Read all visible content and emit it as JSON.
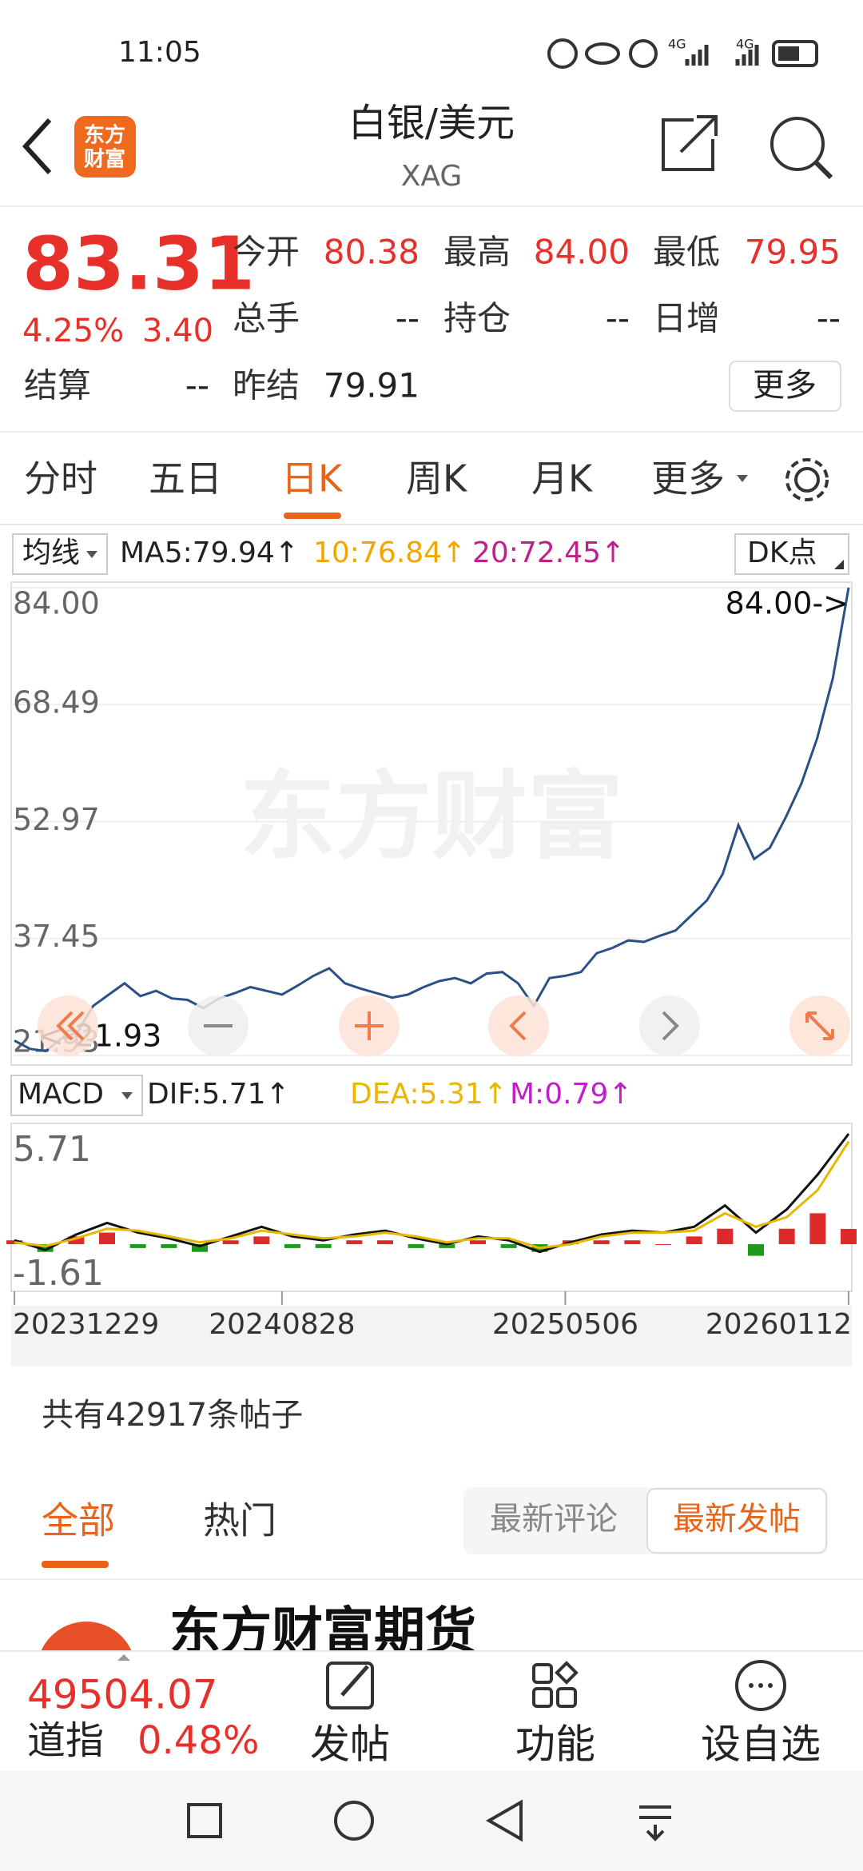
{
  "status_bar": {
    "time": "11:05",
    "network": [
      "4G",
      "4G"
    ]
  },
  "header": {
    "title": "白银/美元",
    "subtitle": "XAG",
    "logo": [
      "东方",
      "财富"
    ]
  },
  "quote": {
    "price": "83.31",
    "change_pct": "4.25%",
    "change": "3.40",
    "fields": [
      {
        "label": "今开",
        "value": "80.38"
      },
      {
        "label": "最高",
        "value": "84.00"
      },
      {
        "label": "最低",
        "value": "79.95"
      },
      {
        "label": "总手",
        "value": "--"
      },
      {
        "label": "持仓",
        "value": "--"
      },
      {
        "label": "日增",
        "value": "--"
      },
      {
        "label": "结算",
        "value": "--"
      },
      {
        "label": "昨结",
        "value": "79.91"
      }
    ],
    "more": "更多"
  },
  "tabs": {
    "items": [
      "分时",
      "五日",
      "日K",
      "周K",
      "月K",
      "更多"
    ],
    "active": 2
  },
  "ma_bar": {
    "selector": "均线",
    "ma5": "MA5:79.94↑",
    "ma10": "10:76.84↑",
    "ma20": "20:72.45↑",
    "dk": "DK点"
  },
  "price_chart": {
    "type": "line",
    "color": "#2c4f86",
    "grid": true,
    "watermark": "东方财富",
    "ylim": [
      21.93,
      84.0
    ],
    "yticks": [
      {
        "value": 84.0,
        "label": "84.00"
      },
      68.49,
      52.97,
      37.45,
      21.93
    ],
    "xlim": [
      0,
      53
    ],
    "xticks": [
      {
        "value": 0,
        "label": "20231229"
      },
      {
        "value": 17,
        "label": "20240828"
      },
      {
        "value": 35,
        "label": "20250506"
      },
      {
        "value": 53,
        "label": "20260112"
      }
    ],
    "max_label": "84.00->",
    "min_label": "<-21.93",
    "values": [
      23.9,
      22.8,
      22.5,
      24.2,
      25.0,
      28.5,
      30.0,
      31.5,
      29.8,
      30.5,
      29.5,
      29.3,
      28.2,
      29.5,
      30.2,
      31.0,
      30.5,
      30.0,
      31.2,
      32.5,
      33.5,
      31.5,
      30.8,
      30.2,
      29.6,
      30.0,
      31.0,
      31.8,
      32.2,
      31.5,
      32.8,
      33.0,
      31.5,
      28.5,
      32.2,
      32.5,
      33.0,
      35.5,
      36.2,
      37.2,
      37.0,
      37.8,
      38.5,
      40.5,
      42.5,
      46.0,
      52.5,
      48.0,
      49.5,
      53.5,
      58.0,
      64.0,
      72.0,
      84.0
    ]
  },
  "macd_chart": {
    "type": "line",
    "selector": "MACD",
    "ylim": [
      -1.61,
      5.71
    ],
    "yticks": [
      5.71,
      -1.61
    ],
    "xlim": [
      0,
      27
    ],
    "series": [
      {
        "label": "DIF:5.71↑",
        "color": "#111111",
        "values": [
          0.2,
          -0.3,
          0.5,
          1.1,
          0.6,
          0.3,
          -0.1,
          0.4,
          0.9,
          0.4,
          0.2,
          0.5,
          0.7,
          0.3,
          0.0,
          0.4,
          0.2,
          -0.4,
          0.1,
          0.5,
          0.7,
          0.6,
          0.9,
          2.0,
          0.6,
          1.8,
          3.6,
          5.71
        ]
      },
      {
        "label": "DEA:5.31↑",
        "color": "#e8b800",
        "values": [
          0.1,
          -0.1,
          0.3,
          0.8,
          0.7,
          0.4,
          0.1,
          0.3,
          0.7,
          0.5,
          0.3,
          0.4,
          0.6,
          0.4,
          0.1,
          0.3,
          0.3,
          -0.2,
          0.0,
          0.4,
          0.6,
          0.6,
          0.7,
          1.6,
          0.9,
          1.4,
          2.8,
          5.31
        ]
      }
    ],
    "m": {
      "label": "M:0.79↑",
      "up_color": "#dd2a2a",
      "down_color": "#1f9a1f",
      "values": [
        0.2,
        -0.4,
        0.4,
        0.6,
        -0.2,
        -0.2,
        -0.4,
        0.2,
        0.4,
        -0.2,
        -0.2,
        0.2,
        0.2,
        -0.2,
        -0.2,
        0.2,
        -0.2,
        -0.4,
        0.2,
        0.2,
        0.2,
        0,
        0.4,
        0.8,
        -0.6,
        0.8,
        1.6,
        0.79
      ]
    }
  },
  "posts": {
    "count": "共有42917条帖子",
    "tabs": [
      "全部",
      "热门"
    ],
    "sort": [
      "最新评论",
      "最新发帖"
    ],
    "preview_author": "东方财富期货"
  },
  "bottom_bar": {
    "index_value": "49504.07",
    "index_name": "道指",
    "index_change": "0.48%",
    "actions": [
      "发帖",
      "功能",
      "设自选"
    ]
  }
}
